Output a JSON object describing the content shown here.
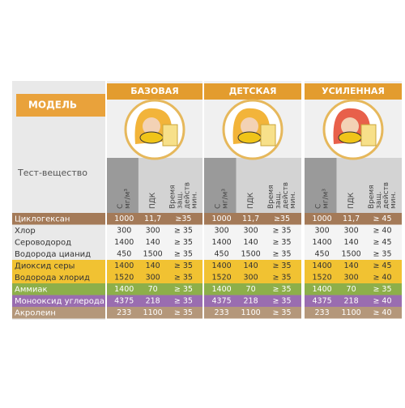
{
  "header": {
    "model_label": "МОДЕЛЬ",
    "substance_label": "Тест-вещество"
  },
  "models": [
    {
      "name": "БАЗОВАЯ"
    },
    {
      "name": "ДЕТСКАЯ"
    },
    {
      "name": "УСИЛЕННАЯ"
    }
  ],
  "columns": [
    [
      "С",
      "мг/м³"
    ],
    [
      "ПДК"
    ],
    [
      "Время",
      "защ.",
      "действ",
      "мин."
    ]
  ],
  "rows": [
    {
      "substance": "Циклогексан",
      "color": "#a47a58",
      "values": [
        [
          "1000",
          "11,7",
          "≥35"
        ],
        [
          "1000",
          "11,7",
          "≥35"
        ],
        [
          "1000",
          "11,7",
          "≥ 45"
        ]
      ]
    },
    {
      "substance": "Хлор",
      "color": "#ffffff",
      "values": [
        [
          "300",
          "300",
          "≥ 35"
        ],
        [
          "300",
          "300",
          "≥ 35"
        ],
        [
          "300",
          "300",
          "≥ 40"
        ]
      ]
    },
    {
      "substance": "Сероводород",
      "color": "#ffffff",
      "values": [
        [
          "1400",
          "140",
          "≥ 35"
        ],
        [
          "1400",
          "140",
          "≥ 35"
        ],
        [
          "1400",
          "140",
          "≥ 45"
        ]
      ]
    },
    {
      "substance": "Водорода цианид",
      "color": "#ffffff",
      "values": [
        [
          "450",
          "1500",
          "≥ 35"
        ],
        [
          "450",
          "1500",
          "≥ 35"
        ],
        [
          "450",
          "1500",
          "≥ 35"
        ]
      ]
    },
    {
      "substance": "Диоксид серы",
      "color": "#f1c232",
      "values": [
        [
          "1400",
          "140",
          "≥ 35"
        ],
        [
          "1400",
          "140",
          "≥ 35"
        ],
        [
          "1400",
          "140",
          "≥ 45"
        ]
      ]
    },
    {
      "substance": "Водорода хлорид",
      "color": "#f1c232",
      "values": [
        [
          "1520",
          "300",
          "≥ 35"
        ],
        [
          "1520",
          "300",
          "≥ 35"
        ],
        [
          "1520",
          "300",
          "≥ 40"
        ]
      ]
    },
    {
      "substance": "Аммиак",
      "color": "#8daf4a",
      "values": [
        [
          "1400",
          "70",
          "≥ 35"
        ],
        [
          "1400",
          "70",
          "≥ 35"
        ],
        [
          "1400",
          "70",
          "≥ 35"
        ]
      ]
    },
    {
      "substance": "Монооксид углерода",
      "color": "#9a6db0",
      "values": [
        [
          "4375",
          "218",
          "≥ 35"
        ],
        [
          "4375",
          "218",
          "≥ 35"
        ],
        [
          "4375",
          "218",
          "≥ 40"
        ]
      ]
    },
    {
      "substance": "Акролеин",
      "color": "#b4977a",
      "values": [
        [
          "233",
          "1100",
          "≥ 35"
        ],
        [
          "233",
          "1100",
          "≥ 35"
        ],
        [
          "233",
          "1100",
          "≥ 40"
        ]
      ]
    }
  ]
}
